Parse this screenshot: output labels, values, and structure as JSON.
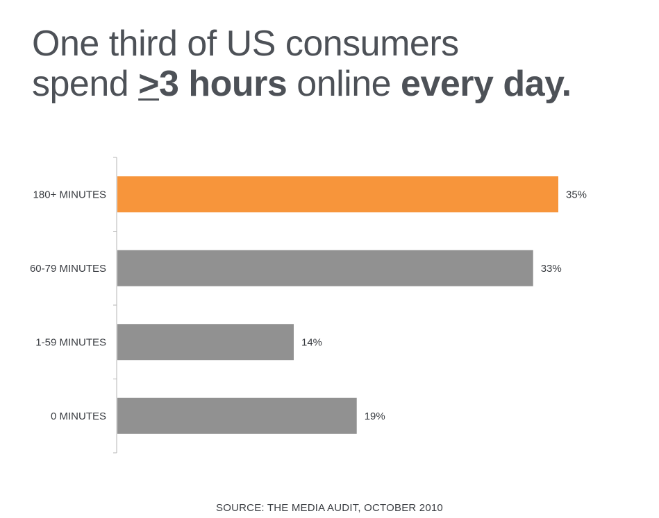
{
  "header": {
    "title_line1": "One third of US consumers",
    "title_line2_part1": "spend ",
    "title_line2_ge": ">",
    "title_line2_bold": "3 hours",
    "title_line2_part2": " online ",
    "title_line2_bold2": "every day."
  },
  "chart_data": {
    "type": "bar",
    "orientation": "horizontal",
    "categories": [
      "180+ MINUTES",
      "60-79 MINUTES",
      "1-59 MINUTES",
      "0 MINUTES"
    ],
    "values": [
      35,
      33,
      14,
      19
    ],
    "value_labels": [
      "35%",
      "33%",
      "14%",
      "19%"
    ],
    "xlim": [
      0,
      35
    ],
    "grid": false,
    "colors": {
      "highlight": "#f7953b",
      "default": "#919191",
      "axis": "#b5b5b5"
    },
    "highlight_index": 0
  },
  "footer": {
    "source": "SOURCE: THE MEDIA AUDIT, OCTOBER 2010"
  }
}
